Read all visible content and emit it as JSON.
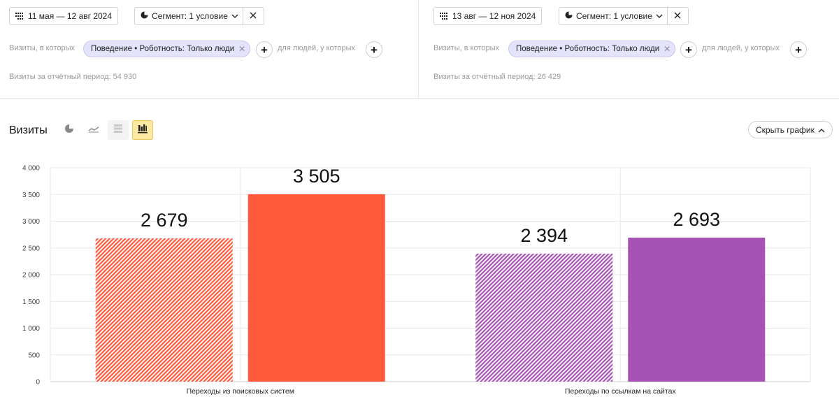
{
  "left_filter": {
    "date_range": "11 мая — 12 авг 2024",
    "segment_label": "Сегмент: 1 условие",
    "visits_where": "Визиты, в которых",
    "condition_chip": "Поведение • Роботность: Только люди",
    "people_where": "для людей, у которых",
    "period_total": "Визиты за отчётный период: 54 930"
  },
  "right_filter": {
    "date_range": "13 авг — 12 ноя 2024",
    "segment_label": "Сегмент: 1 условие",
    "visits_where": "Визиты, в которых",
    "condition_chip": "Поведение • Роботность: Только люди",
    "people_where": "для людей, у которых",
    "period_total": "Визиты за отчётный период: 26 429"
  },
  "chart_header": {
    "title": "Визиты",
    "hide_chart_label": "Скрыть график",
    "view_icons": [
      "pie-chart-icon",
      "line-chart-icon",
      "stacked-chart-icon",
      "bar-chart-icon"
    ],
    "active_view": "bar-chart-icon"
  },
  "chart_data": {
    "type": "bar",
    "categories": [
      "Переходы из поисковых систем",
      "Переходы по ссылкам на сайтах"
    ],
    "series": [
      {
        "values": [
          2679,
          2394
        ],
        "pattern": "hatched"
      },
      {
        "values": [
          3505,
          2693
        ],
        "pattern": "solid"
      }
    ],
    "data_labels": [
      [
        "2 679",
        "3 505"
      ],
      [
        "2 394",
        "2 693"
      ]
    ],
    "bar_colors": [
      [
        "#ff5a3c",
        "#ff5a3c"
      ],
      [
        "#a653b5",
        "#a653b5"
      ]
    ],
    "y_ticks": [
      "4 000",
      "3 500",
      "3 000",
      "2 500",
      "2 000",
      "1 500",
      "1 000",
      "500",
      "0"
    ],
    "ylim": [
      0,
      4000
    ],
    "grid": true,
    "xlabel": "",
    "ylabel": ""
  }
}
